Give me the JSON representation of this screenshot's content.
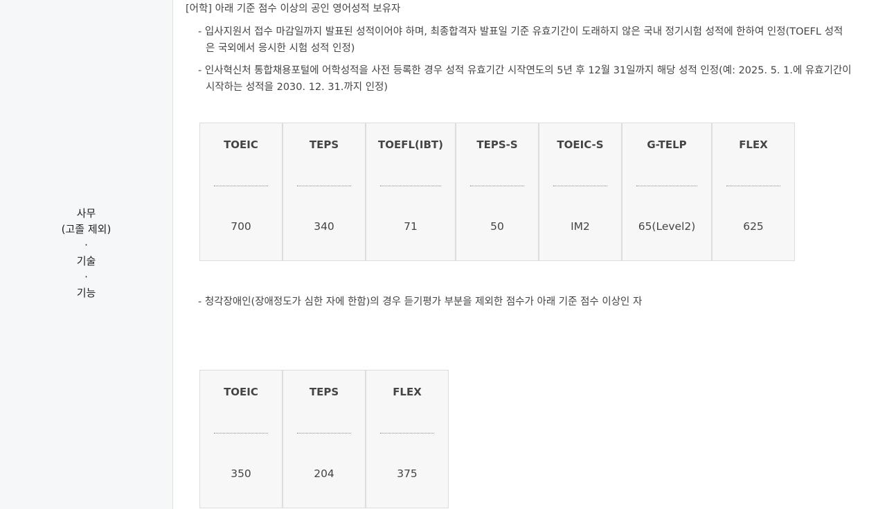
{
  "category": {
    "lines": [
      "사무",
      "(고졸 제외)",
      "·",
      "기술",
      "·",
      "기능"
    ]
  },
  "requirement": {
    "bullet": "[어학] 아래 기준 점수 이상의 공인 영어성적 보유자",
    "notes": [
      {
        "line1": "- 입사지원서 접수 마감일까지 발표된 성적이어야 하며, 최종합격자 발표일 기준 유효기간이 도래하지 않은 국내 정기시험 성적에 한하여 인정(TOEFL 성적",
        "line2": "은 국외에서 응시한 시험 성적 인정)"
      },
      {
        "line1": "- 인사혁신처 통합채용포털에 어학성적을 사전 등록한 경우 성적 유효기간 시작연도의 5년 후 12월 31일까지 해당 성적 인정(예: 2025. 5. 1.에 유효기간이",
        "line2": "시작하는 성적을 2030. 12. 31.까지 인정)"
      }
    ],
    "hearing_note": "- 청각장애인(장애정도가 심한 자에 한함)의 경우 듣기평가 부분을 제외한 점수가 아래 기준 점수 이상인 자"
  },
  "score_table": [
    {
      "test": "TOEIC",
      "score": "700"
    },
    {
      "test": "TEPS",
      "score": "340"
    },
    {
      "test": "TOEFL(IBT)",
      "score": "71"
    },
    {
      "test": "TEPS-S",
      "score": "50"
    },
    {
      "test": "TOEIC-S",
      "score": "IM2"
    },
    {
      "test": "G-TELP",
      "score": "65(Level2)"
    },
    {
      "test": "FLEX",
      "score": "625"
    }
  ],
  "hearing_table": [
    {
      "test": "TOEIC",
      "score": "350"
    },
    {
      "test": "TEPS",
      "score": "204"
    },
    {
      "test": "FLEX",
      "score": "375"
    }
  ]
}
